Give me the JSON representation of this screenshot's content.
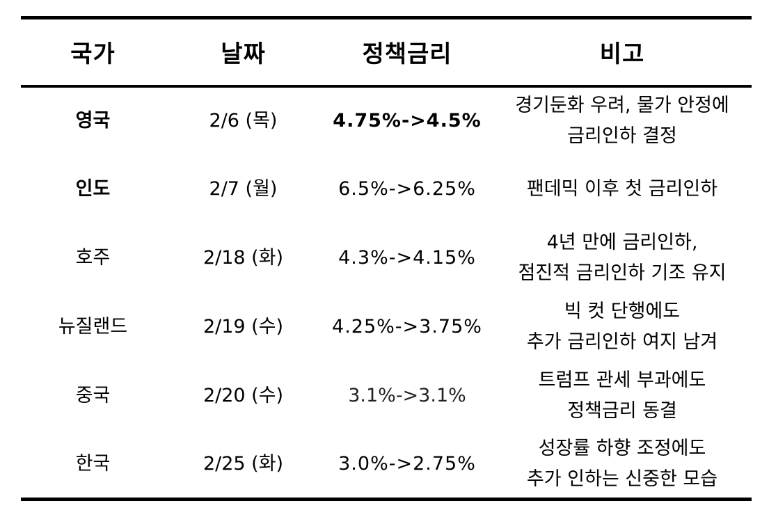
{
  "headers": {
    "country": "국가",
    "date": "날짜",
    "rate": "정책금리",
    "note": "비고"
  },
  "rows": [
    {
      "country": "영국",
      "date": "2/6 (목)",
      "rate": "4.75%->4.5%",
      "note": [
        "경기둔화 우려, 물가 안정에",
        "금리인하 결정"
      ]
    },
    {
      "country": "인도",
      "date": "2/7 (월)",
      "rate": "6.5%->6.25%",
      "note": [
        "팬데믹 이후 첫 금리인하",
        ""
      ]
    },
    {
      "country": "호주",
      "date": "2/18 (화)",
      "rate": "4.3%->4.15%",
      "note": [
        "4년 만에 금리인하,",
        "점진적 금리인하 기조 유지"
      ]
    },
    {
      "country": "뉴질랜드",
      "date": "2/19 (수)",
      "rate": "4.25%->3.75%",
      "note": [
        "빅 컷 단행에도",
        "추가 금리인하 여지 남겨"
      ]
    },
    {
      "country": "중국",
      "date": "2/20 (수)",
      "rate": "3.1%->3.1%",
      "note": [
        "트럼프 관세 부과에도",
        "정책금리 동결"
      ]
    },
    {
      "country": "한국",
      "date": "2/25 (화)",
      "rate": "3.0%->2.75%",
      "note": [
        "성장률 하향 조정에도",
        "추가 인하는 신중한 모습"
      ]
    }
  ]
}
